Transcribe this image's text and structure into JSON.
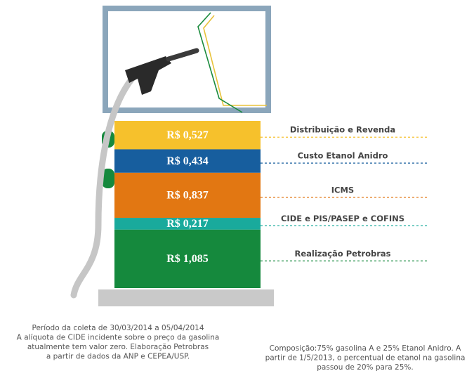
{
  "chart_data": {
    "type": "stacked-bar",
    "series": [
      {
        "name": "Distribuição e Revenda",
        "color": "#f6c12c",
        "values": [
          0.527
        ],
        "value_labels": [
          "R$ 0,527"
        ]
      },
      {
        "name": "Custo Etanol Anidro",
        "color": "#175e9e",
        "values": [
          0.434
        ],
        "value_labels": [
          "R$ 0,434"
        ]
      },
      {
        "name": "ICMS",
        "color": "#e27712",
        "values": [
          0.837
        ],
        "value_labels": [
          "R$ 0,837"
        ]
      },
      {
        "name": "CIDE e PIS/PASEP e COFINS",
        "color": "#19aa9c",
        "values": [
          0.217
        ],
        "value_labels": [
          "R$ 0,217"
        ]
      },
      {
        "name": "Realização Petrobras",
        "color": "#15893d",
        "values": [
          1.085
        ],
        "value_labels": [
          "R$ 1,085"
        ]
      }
    ],
    "notes_left": [
      "Período da coleta de 30/03/2014 a 05/04/2014",
      "A alíquota de CIDE incidente sobre o preço da gasolina",
      "atualmente tem valor zero. Elaboração Petrobras",
      "a partir de dados da ANP e CEPEA/USP."
    ],
    "notes_right": [
      "Composição:75% gasolina A e 25% Etanol Anidro. A",
      "partir de 1/5/2013, o percentual de etanol na gasolina",
      "passou de 20% para 25%."
    ]
  }
}
